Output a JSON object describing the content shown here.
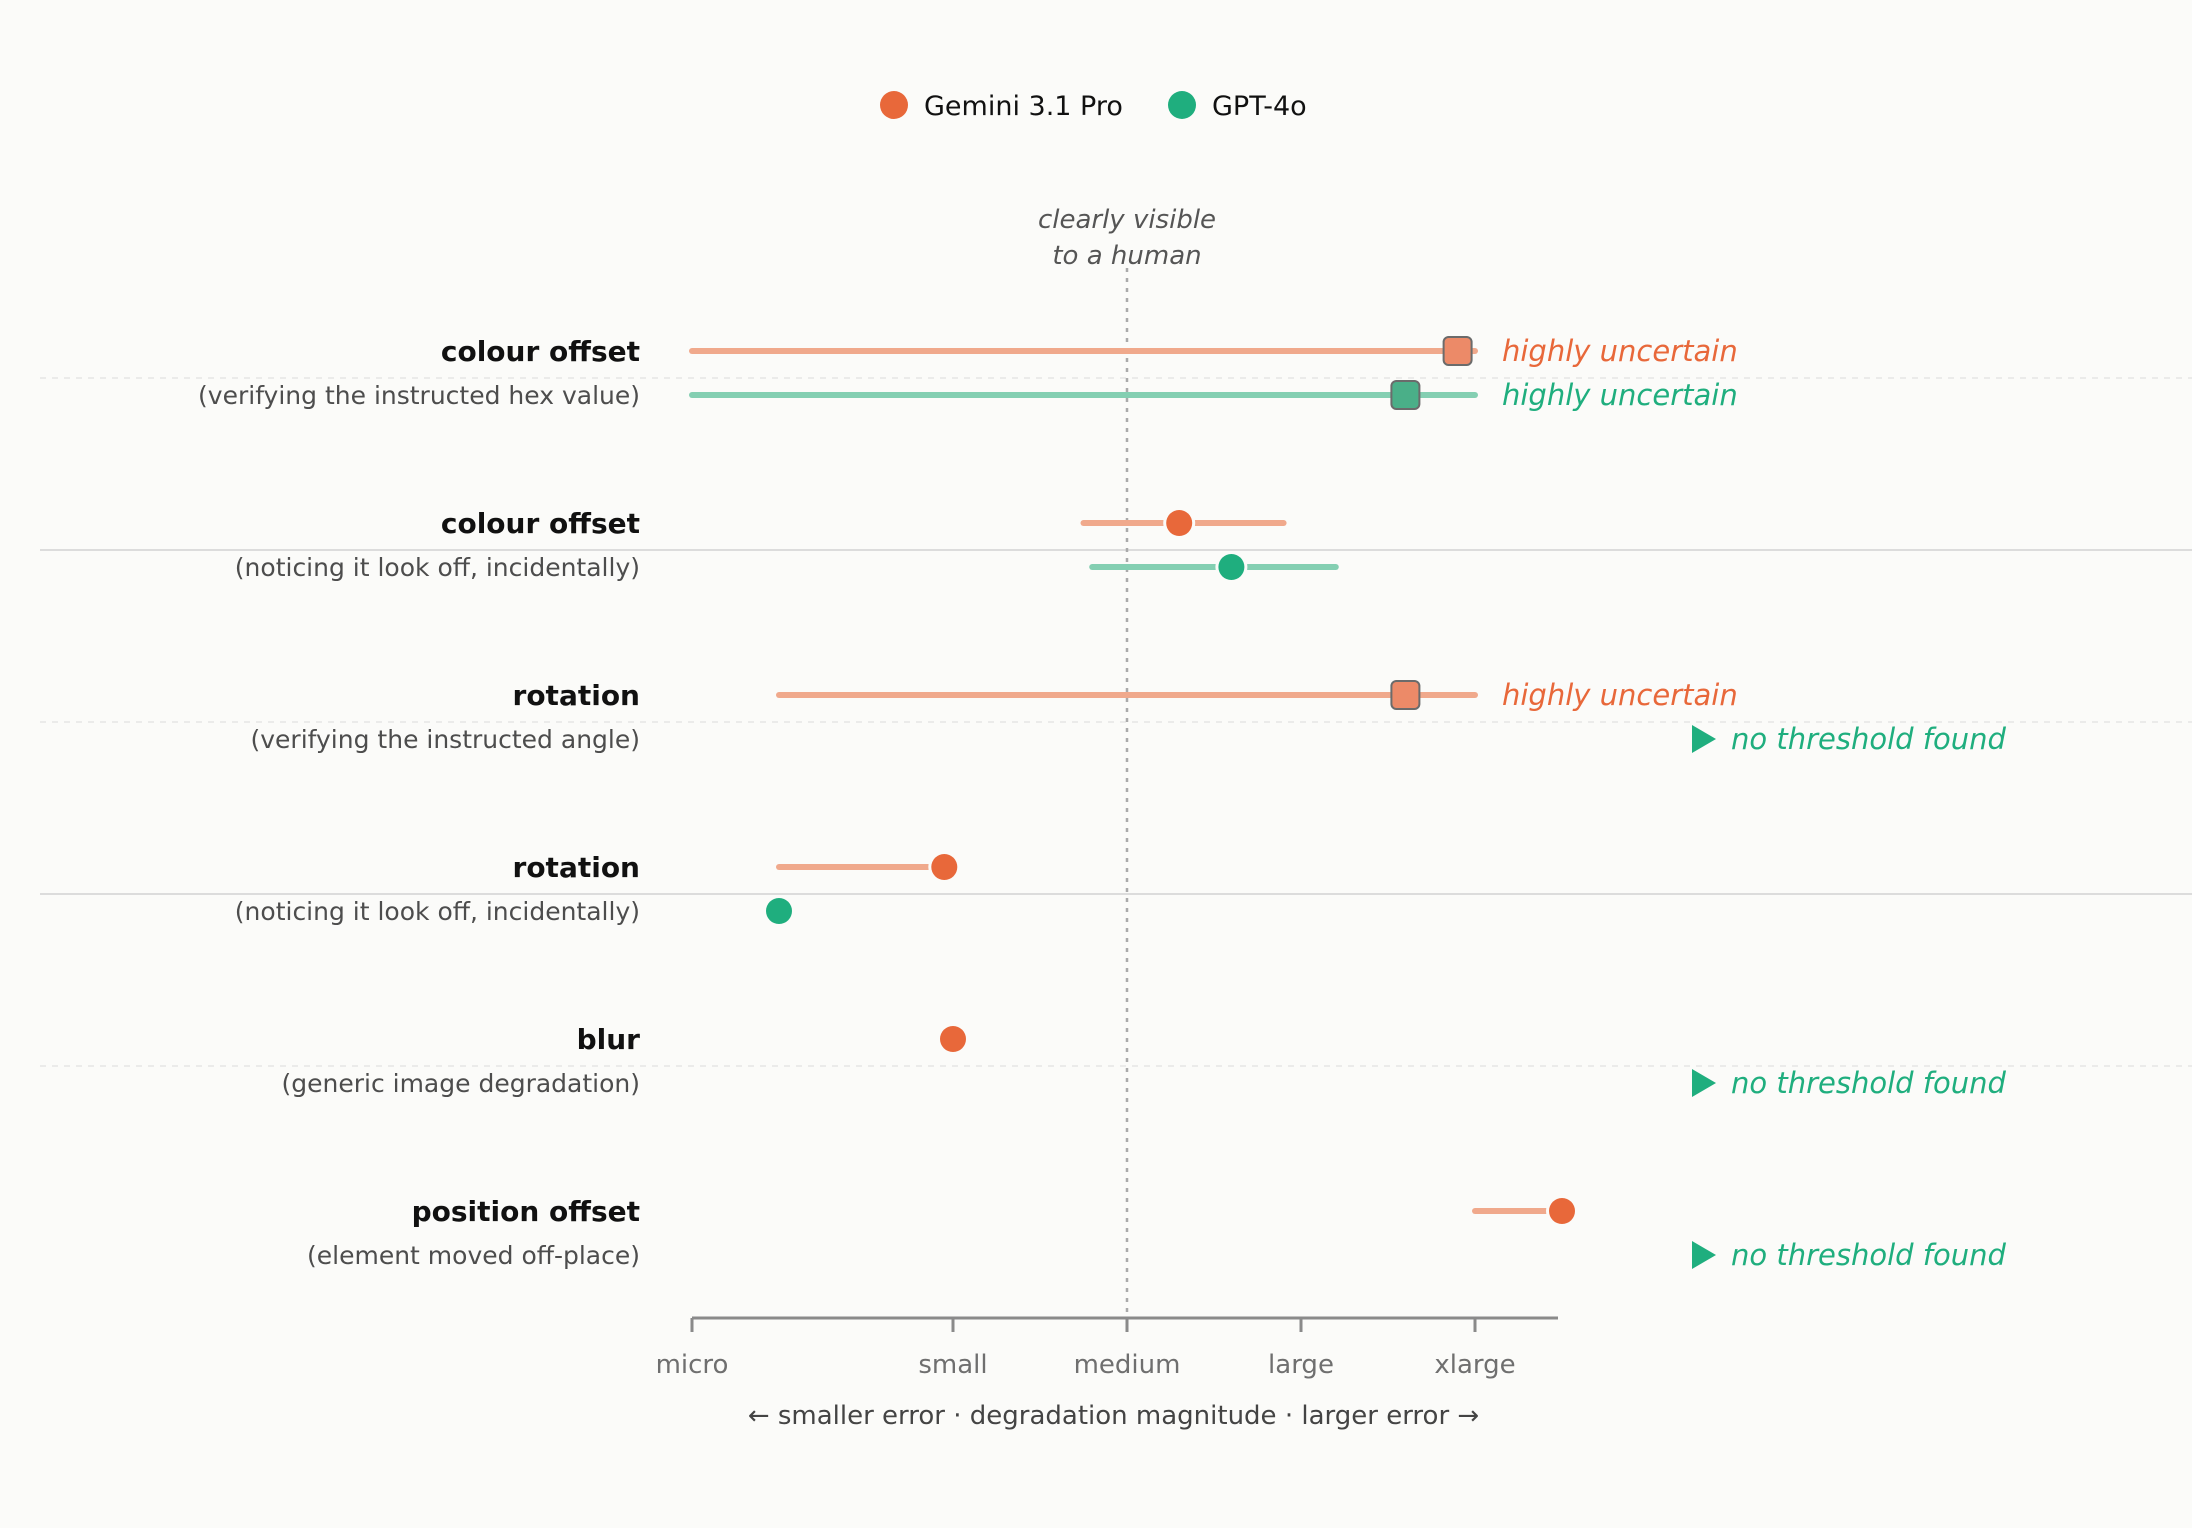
{
  "chart_data": {
    "type": "scatter",
    "legend": {
      "position": "top-center",
      "entries": [
        {
          "name": "Gemini 3.1 Pro",
          "color": "#e8683a"
        },
        {
          "name": "GPT-4o",
          "color": "#1fae7e"
        }
      ]
    },
    "x_axis": {
      "title": "← smaller error · degradation magnitude · larger error →",
      "ticks": [
        "micro",
        "small",
        "medium",
        "large",
        "xlarge"
      ],
      "range": [
        0,
        5
      ]
    },
    "reference_line": {
      "label_lines": [
        "clearly visible",
        "to a human"
      ],
      "x": 2.5
    },
    "rows": [
      {
        "title": "colour offset",
        "subtitle": "(verifying the instructed hex value)",
        "series": [
          {
            "model": "Gemini 3.1 Pro",
            "estimate": 4.4,
            "low": 0.0,
            "high": 4.5,
            "uncertain": true,
            "note": "highly uncertain"
          },
          {
            "model": "GPT-4o",
            "estimate": 4.1,
            "low": 0.0,
            "high": 4.5,
            "uncertain": true,
            "note": "highly uncertain"
          }
        ]
      },
      {
        "title": "colour offset",
        "subtitle": "(noticing it look off, incidentally)",
        "series": [
          {
            "model": "Gemini 3.1 Pro",
            "estimate": 2.8,
            "low": 2.25,
            "high": 3.4
          },
          {
            "model": "GPT-4o",
            "estimate": 3.1,
            "low": 2.3,
            "high": 3.7
          }
        ]
      },
      {
        "title": "rotation",
        "subtitle": "(verifying the instructed angle)",
        "series": [
          {
            "model": "Gemini 3.1 Pro",
            "estimate": 4.1,
            "low": 0.5,
            "high": 4.5,
            "uncertain": true,
            "note": "highly uncertain"
          },
          {
            "model": "GPT-4o",
            "no_threshold": true,
            "note": "no threshold found"
          }
        ]
      },
      {
        "title": "rotation",
        "subtitle": "(noticing it look off, incidentally)",
        "series": [
          {
            "model": "Gemini 3.1 Pro",
            "estimate": 1.45,
            "low": 0.5,
            "high": 1.45
          },
          {
            "model": "GPT-4o",
            "estimate": 0.5
          }
        ]
      },
      {
        "title": "blur",
        "subtitle": "(generic image degradation)",
        "series": [
          {
            "model": "Gemini 3.1 Pro",
            "estimate": 1.5
          },
          {
            "model": "GPT-4o",
            "no_threshold": true,
            "note": "no threshold found"
          }
        ]
      },
      {
        "title": "position offset",
        "subtitle": "(element moved off-place)",
        "series": [
          {
            "model": "Gemini 3.1 Pro",
            "estimate": 5.0,
            "low": 4.5,
            "high": 5.0
          },
          {
            "model": "GPT-4o",
            "no_threshold": true,
            "note": "no threshold found"
          }
        ]
      }
    ],
    "grid": false
  }
}
